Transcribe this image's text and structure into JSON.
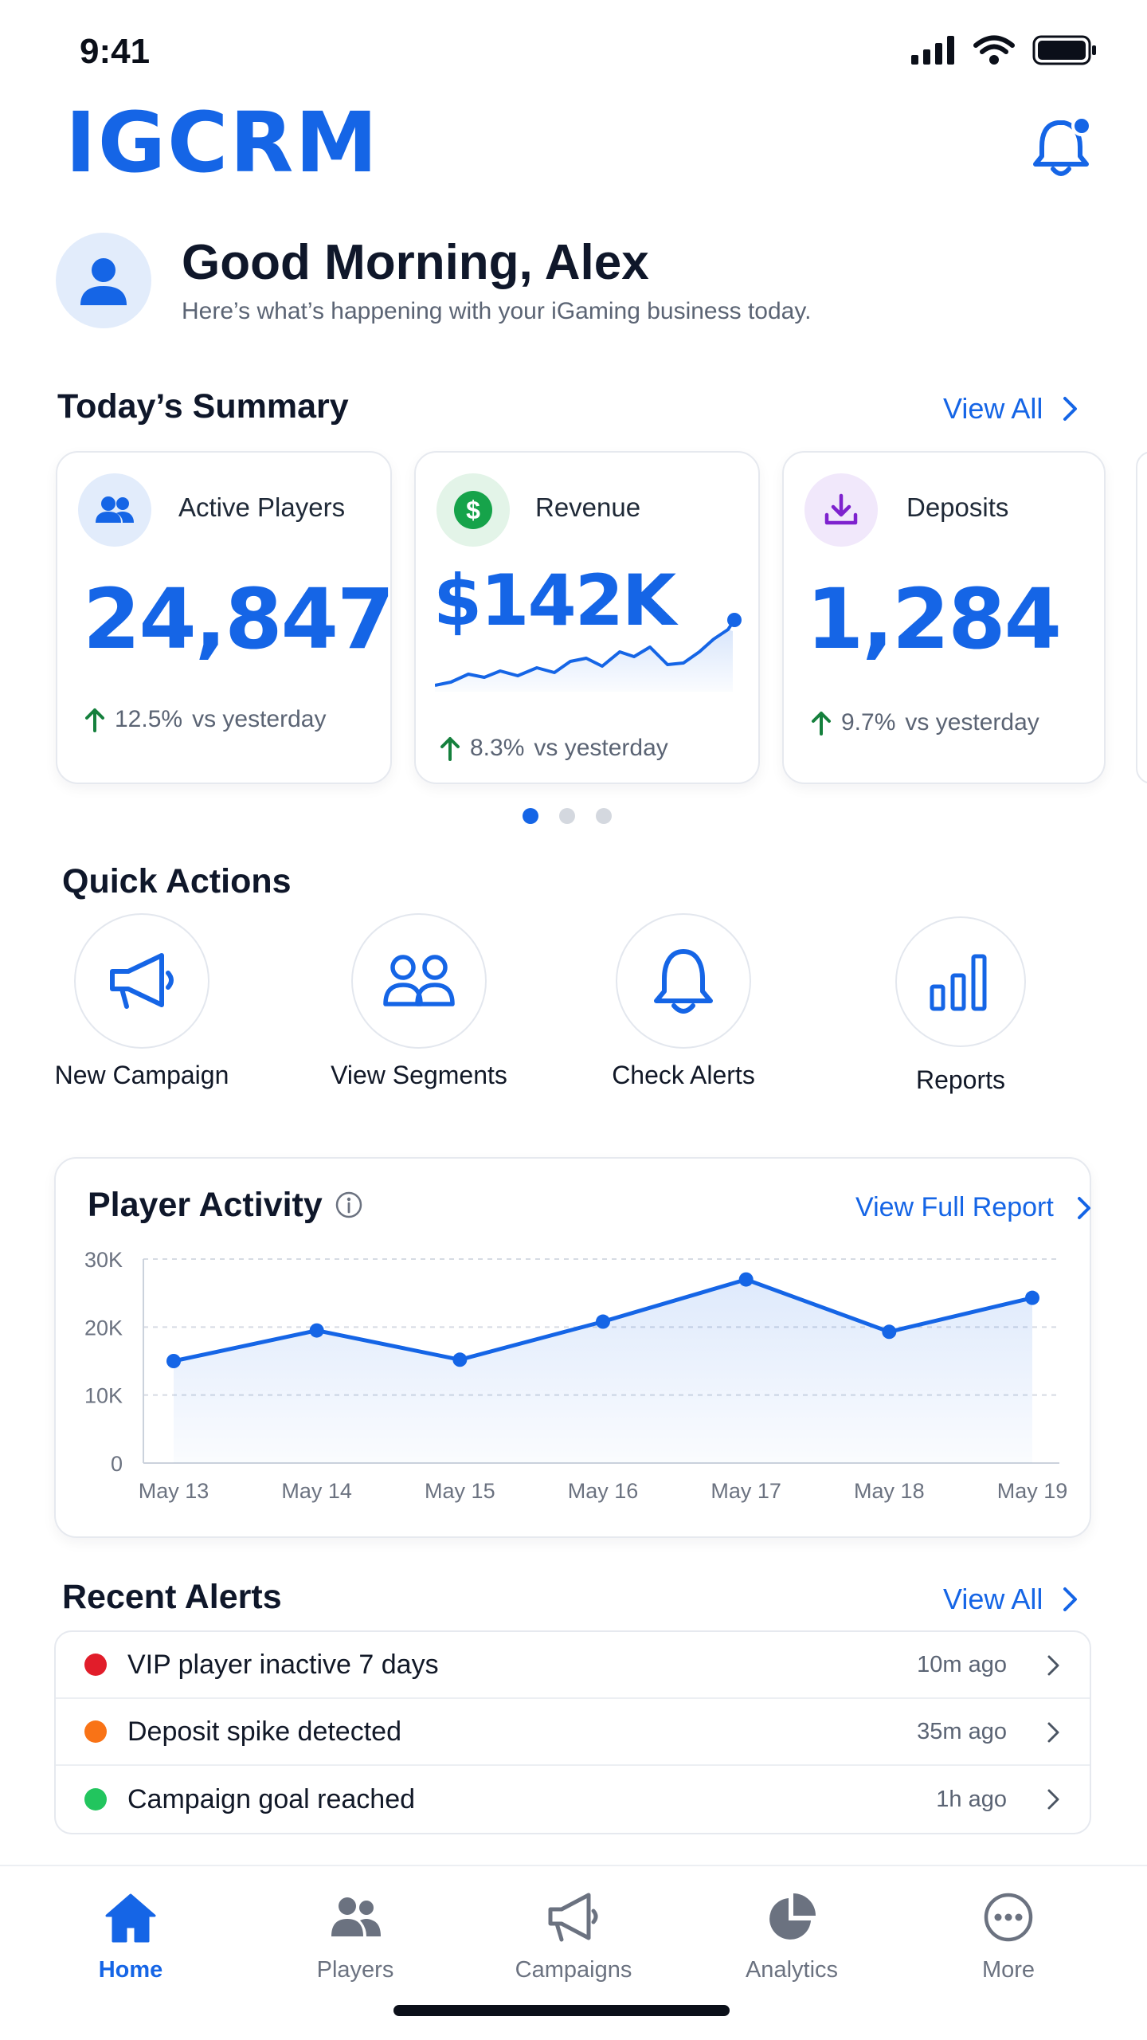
{
  "status_bar": {
    "time": "9:41"
  },
  "brand": {
    "name": "IGCRM"
  },
  "greeting": {
    "title": "Good Morning, Alex",
    "subtitle": "Here’s what’s happening with your iGaming business today."
  },
  "summary": {
    "title": "Today’s Summary",
    "view_all": "View All",
    "cards": [
      {
        "label": "Active Players",
        "value": "24,847",
        "change": "12.5%",
        "compare": "vs yesterday",
        "icon": "users-icon"
      },
      {
        "label": "Revenue",
        "value": "$142K",
        "change": "8.3%",
        "compare": "vs yesterday",
        "icon": "dollar-icon"
      },
      {
        "label": "Deposits",
        "value": "1,284",
        "change": "9.7%",
        "compare": "vs yesterday",
        "icon": "download-icon"
      }
    ],
    "pager": {
      "pages": 3,
      "active": 0
    }
  },
  "quick_actions": {
    "title": "Quick Actions",
    "items": [
      {
        "label": "New Campaign",
        "icon": "megaphone-icon"
      },
      {
        "label": "View Segments",
        "icon": "segments-icon"
      },
      {
        "label": "Check Alerts",
        "icon": "bell-icon"
      },
      {
        "label": "Reports",
        "icon": "bar-chart-icon"
      }
    ]
  },
  "player_activity": {
    "title": "Player Activity",
    "view_report": "View Full Report"
  },
  "chart_data": {
    "type": "line",
    "title": "Player Activity",
    "categories": [
      "May 13",
      "May 14",
      "May 15",
      "May 16",
      "May 17",
      "May 18",
      "May 19"
    ],
    "values": [
      15000,
      19500,
      15200,
      20800,
      27000,
      19300,
      24300
    ],
    "yticks": [
      "0",
      "10K",
      "20K",
      "30K"
    ],
    "ylim": [
      0,
      30000
    ],
    "grid": true,
    "color": "#1565e6"
  },
  "alerts": {
    "title": "Recent Alerts",
    "view_all": "View All",
    "items": [
      {
        "text": "VIP player inactive 7 days",
        "time": "10m ago",
        "color": "#e11d2a"
      },
      {
        "text": "Deposit spike detected",
        "time": "35m ago",
        "color": "#f97316"
      },
      {
        "text": "Campaign goal reached",
        "time": "1h ago",
        "color": "#22c55e"
      }
    ]
  },
  "tabbar": {
    "items": [
      {
        "label": "Home",
        "icon": "home-icon",
        "active": true
      },
      {
        "label": "Players",
        "icon": "players-icon",
        "active": false
      },
      {
        "label": "Campaigns",
        "icon": "megaphone-icon",
        "active": false
      },
      {
        "label": "Analytics",
        "icon": "pie-chart-icon",
        "active": false
      },
      {
        "label": "More",
        "icon": "more-icon",
        "active": false
      }
    ]
  }
}
